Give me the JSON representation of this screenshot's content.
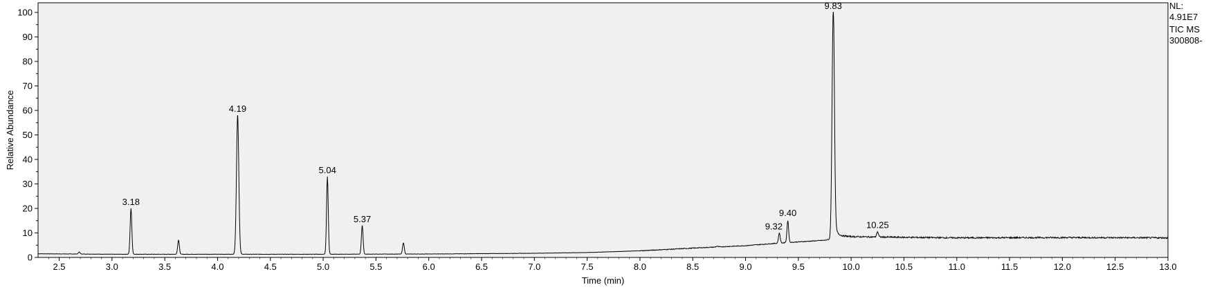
{
  "chart_data": {
    "type": "line",
    "title": "",
    "xlabel": "Time (min)",
    "ylabel": "Relative Abundance",
    "xlim": [
      2.3,
      13.0
    ],
    "ylim": [
      0,
      100
    ],
    "x_ticks": [
      "2.5",
      "3.0",
      "3.5",
      "4.0",
      "4.5",
      "5.0",
      "5.5",
      "6.0",
      "6.5",
      "7.0",
      "7.5",
      "8.0",
      "8.5",
      "9.0",
      "9.5",
      "10.0",
      "10.5",
      "11.0",
      "11.5",
      "12.0",
      "12.5",
      "13.0"
    ],
    "y_ticks": [
      "0",
      "10",
      "20",
      "30",
      "40",
      "50",
      "60",
      "70",
      "80",
      "90",
      "100"
    ],
    "grid": false,
    "colors": {
      "line": "#000000",
      "plot_background": "#f0f0f0",
      "axis": "#000000"
    },
    "baseline": [
      {
        "x": 2.3,
        "y": 1.5
      },
      {
        "x": 3.0,
        "y": 1.3
      },
      {
        "x": 4.0,
        "y": 1.3
      },
      {
        "x": 5.0,
        "y": 1.3
      },
      {
        "x": 6.0,
        "y": 1.4
      },
      {
        "x": 7.0,
        "y": 1.7
      },
      {
        "x": 7.5,
        "y": 2.0
      },
      {
        "x": 8.0,
        "y": 2.7
      },
      {
        "x": 8.5,
        "y": 3.8
      },
      {
        "x": 9.0,
        "y": 4.8
      },
      {
        "x": 9.3,
        "y": 5.8
      },
      {
        "x": 9.6,
        "y": 6.6
      },
      {
        "x": 9.75,
        "y": 7.0
      },
      {
        "x": 9.95,
        "y": 8.5
      },
      {
        "x": 10.5,
        "y": 8.2
      },
      {
        "x": 11.0,
        "y": 8.0
      },
      {
        "x": 12.0,
        "y": 8.1
      },
      {
        "x": 13.0,
        "y": 8.0
      }
    ],
    "peaks": [
      {
        "x": 2.69,
        "y": 2.2,
        "label": ""
      },
      {
        "x": 3.18,
        "y": 20,
        "label": "3.18"
      },
      {
        "x": 3.63,
        "y": 7,
        "label": ""
      },
      {
        "x": 4.19,
        "y": 58,
        "label": "4.19"
      },
      {
        "x": 5.04,
        "y": 33,
        "label": "5.04"
      },
      {
        "x": 5.37,
        "y": 13,
        "label": "5.37"
      },
      {
        "x": 5.76,
        "y": 6,
        "label": ""
      },
      {
        "x": 8.73,
        "y": 4.6,
        "label": ""
      },
      {
        "x": 9.32,
        "y": 10,
        "label": "9.32"
      },
      {
        "x": 9.4,
        "y": 15,
        "label": "9.40"
      },
      {
        "x": 9.83,
        "y": 100,
        "label": "9.83"
      },
      {
        "x": 10.25,
        "y": 10.5,
        "label": "10.25"
      }
    ]
  },
  "info": {
    "nl_label": "NL:",
    "nl_value": "4.91E7",
    "scan_type": "TIC  MS",
    "file_name": "300808-"
  }
}
